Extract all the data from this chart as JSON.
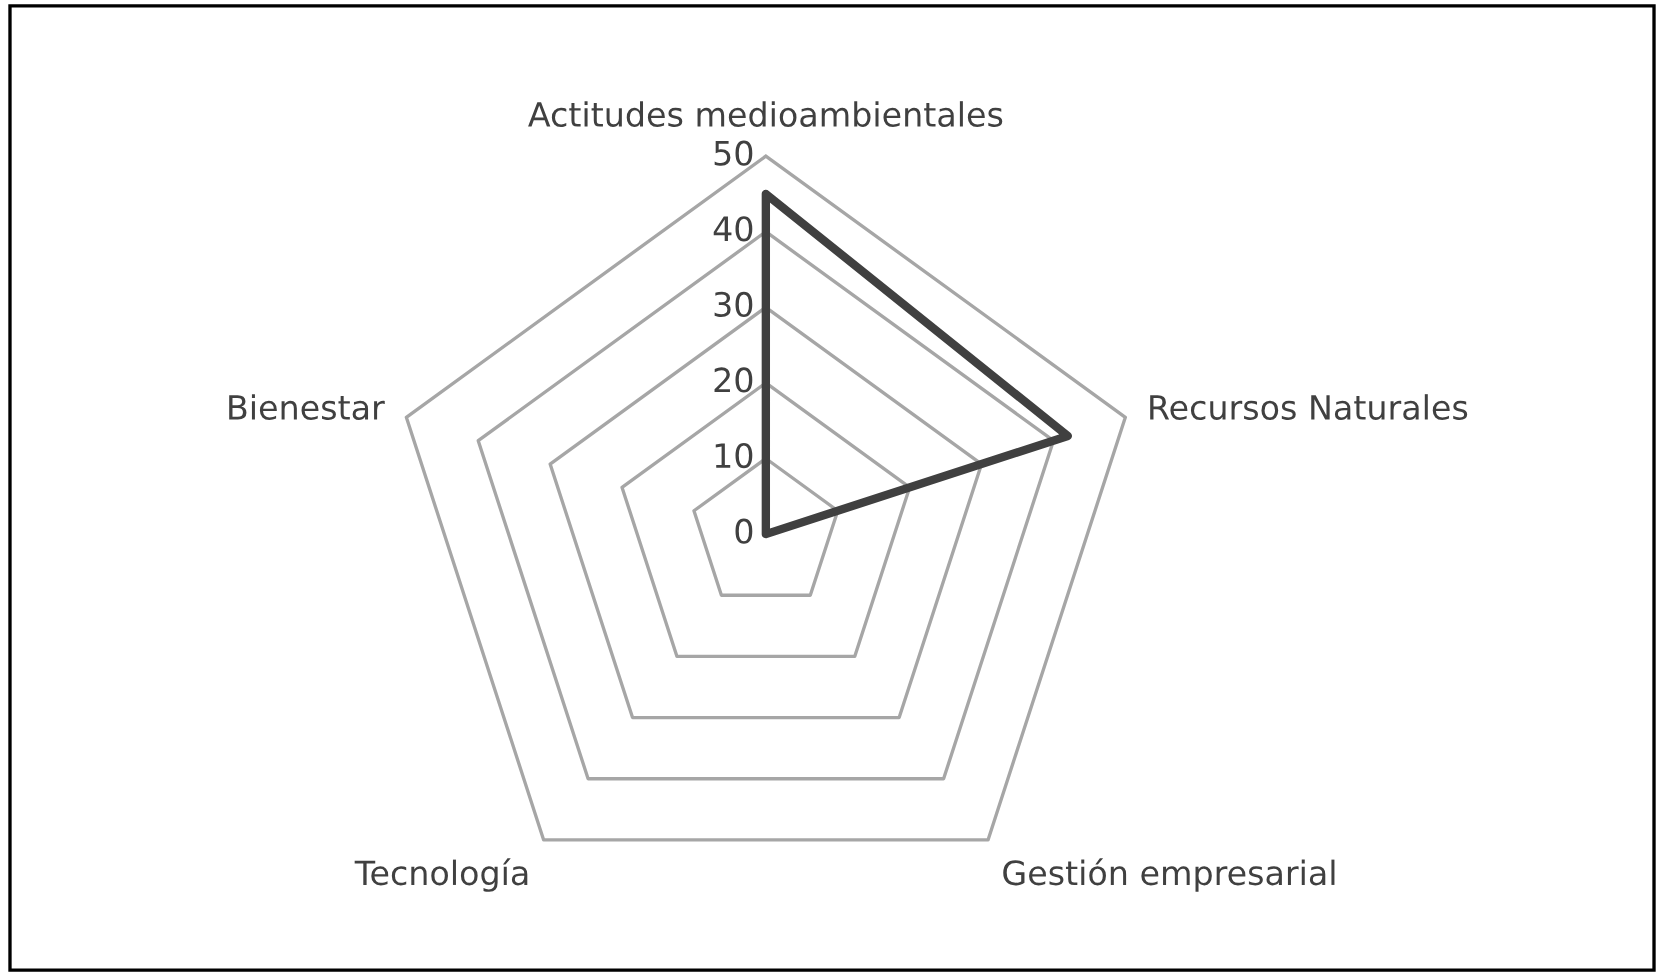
{
  "chart_data": {
    "type": "radar",
    "categories": [
      "Actitudes medioambientales",
      "Recursos Naturales",
      "Gestión empresarial",
      "Tecnología",
      "Bienestar"
    ],
    "series": [
      {
        "color": "#404040",
        "values": [
          45,
          42,
          0,
          0,
          0
        ]
      }
    ],
    "ylim": [
      0,
      50
    ],
    "yticks": [
      0,
      10,
      20,
      30,
      40,
      50
    ],
    "grid": true
  }
}
